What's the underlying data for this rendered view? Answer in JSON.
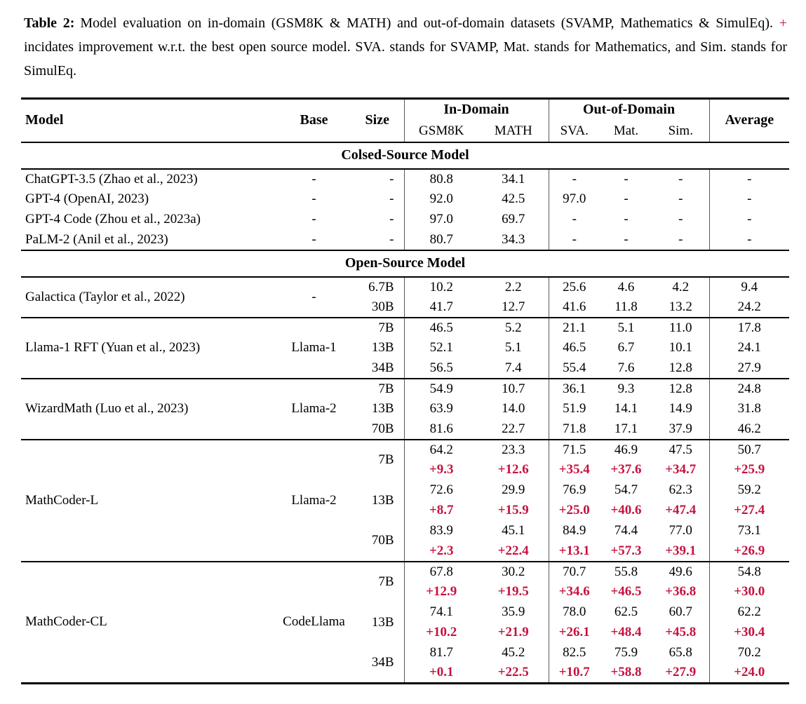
{
  "caption": {
    "label": "Table 2:",
    "text_before_plus": "Model evaluation on in-domain (GSM8K & MATH) and out-of-domain datasets (SVAMP, Mathematics & SimulEq).",
    "plus_sign": "+",
    "text_after_plus": "incidates improvement w.r.t. the best open source model. SVA. stands for SVAMP, Mat. stands for Mathematics, and Sim. stands for SimulEq."
  },
  "colors": {
    "improvement_red": "#c6123f",
    "text": "#000000",
    "rule": "#000000"
  },
  "table": {
    "header": {
      "model": "Model",
      "base": "Base",
      "size": "Size",
      "in_domain": "In-Domain",
      "out_of_domain": "Out-of-Domain",
      "gsm8k": "GSM8K",
      "math": "MATH",
      "sva": "SVA.",
      "mat": "Mat.",
      "sim": "Sim.",
      "average": "Average"
    },
    "value_columns": [
      "gsm8k",
      "math",
      "sva",
      "mat",
      "sim",
      "average"
    ],
    "sections": [
      {
        "title": "Colsed-Source Model",
        "groups": [
          {
            "model": "ChatGPT-3.5 (Zhao et al., 2023)",
            "base": "-",
            "rule_above": false,
            "rows": [
              {
                "size": "-",
                "vals": [
                  "80.8",
                  "34.1",
                  "-",
                  "-",
                  "-",
                  "-"
                ]
              }
            ]
          },
          {
            "model": "GPT-4 (OpenAI, 2023)",
            "base": "-",
            "rule_above": false,
            "rows": [
              {
                "size": "-",
                "vals": [
                  "92.0",
                  "42.5",
                  "97.0",
                  "-",
                  "-",
                  "-"
                ]
              }
            ]
          },
          {
            "model": "GPT-4 Code (Zhou et al., 2023a)",
            "base": "-",
            "rule_above": false,
            "rows": [
              {
                "size": "-",
                "vals": [
                  "97.0",
                  "69.7",
                  "-",
                  "-",
                  "-",
                  "-"
                ]
              }
            ]
          },
          {
            "model": "PaLM-2 (Anil et al., 2023)",
            "base": "-",
            "rule_above": false,
            "rows": [
              {
                "size": "-",
                "vals": [
                  "80.7",
                  "34.3",
                  "-",
                  "-",
                  "-",
                  "-"
                ]
              }
            ]
          }
        ]
      },
      {
        "title": "Open-Source Model",
        "groups": [
          {
            "model": "Galactica (Taylor et al., 2022)",
            "base": "-",
            "rule_above": false,
            "rows": [
              {
                "size": "6.7B",
                "vals": [
                  "10.2",
                  "2.2",
                  "25.6",
                  "4.6",
                  "4.2",
                  "9.4"
                ]
              },
              {
                "size": "30B",
                "vals": [
                  "41.7",
                  "12.7",
                  "41.6",
                  "11.8",
                  "13.2",
                  "24.2"
                ]
              }
            ]
          },
          {
            "model": "Llama-1 RFT (Yuan et al., 2023)",
            "base": "Llama-1",
            "rule_above": true,
            "rows": [
              {
                "size": "7B",
                "vals": [
                  "46.5",
                  "5.2",
                  "21.1",
                  "5.1",
                  "11.0",
                  "17.8"
                ]
              },
              {
                "size": "13B",
                "vals": [
                  "52.1",
                  "5.1",
                  "46.5",
                  "6.7",
                  "10.1",
                  "24.1"
                ]
              },
              {
                "size": "34B",
                "vals": [
                  "56.5",
                  "7.4",
                  "55.4",
                  "7.6",
                  "12.8",
                  "27.9"
                ]
              }
            ]
          },
          {
            "model": "WizardMath (Luo et al., 2023)",
            "base": "Llama-2",
            "rule_above": true,
            "rows": [
              {
                "size": "7B",
                "vals": [
                  "54.9",
                  "10.7",
                  "36.1",
                  "9.3",
                  "12.8",
                  "24.8"
                ]
              },
              {
                "size": "13B",
                "vals": [
                  "63.9",
                  "14.0",
                  "51.9",
                  "14.1",
                  "14.9",
                  "31.8"
                ]
              },
              {
                "size": "70B",
                "vals": [
                  "81.6",
                  "22.7",
                  "71.8",
                  "17.1",
                  "37.9",
                  "46.2"
                ]
              }
            ]
          },
          {
            "model": "MathCoder-L",
            "base": "Llama-2",
            "rule_above": true,
            "rows": [
              {
                "size": "7B",
                "vals": [
                  "64.2",
                  "23.3",
                  "71.5",
                  "46.9",
                  "47.5",
                  "50.7"
                ],
                "delta": [
                  "+9.3",
                  "+12.6",
                  "+35.4",
                  "+37.6",
                  "+34.7",
                  "+25.9"
                ]
              },
              {
                "size": "13B",
                "vals": [
                  "72.6",
                  "29.9",
                  "76.9",
                  "54.7",
                  "62.3",
                  "59.2"
                ],
                "delta": [
                  "+8.7",
                  "+15.9",
                  "+25.0",
                  "+40.6",
                  "+47.4",
                  "+27.4"
                ]
              },
              {
                "size": "70B",
                "vals": [
                  "83.9",
                  "45.1",
                  "84.9",
                  "74.4",
                  "77.0",
                  "73.1"
                ],
                "delta": [
                  "+2.3",
                  "+22.4",
                  "+13.1",
                  "+57.3",
                  "+39.1",
                  "+26.9"
                ]
              }
            ]
          },
          {
            "model": "MathCoder-CL",
            "base": "CodeLlama",
            "rule_above": true,
            "rows": [
              {
                "size": "7B",
                "vals": [
                  "67.8",
                  "30.2",
                  "70.7",
                  "55.8",
                  "49.6",
                  "54.8"
                ],
                "delta": [
                  "+12.9",
                  "+19.5",
                  "+34.6",
                  "+46.5",
                  "+36.8",
                  "+30.0"
                ]
              },
              {
                "size": "13B",
                "vals": [
                  "74.1",
                  "35.9",
                  "78.0",
                  "62.5",
                  "60.7",
                  "62.2"
                ],
                "delta": [
                  "+10.2",
                  "+21.9",
                  "+26.1",
                  "+48.4",
                  "+45.8",
                  "+30.4"
                ]
              },
              {
                "size": "34B",
                "vals": [
                  "81.7",
                  "45.2",
                  "82.5",
                  "75.9",
                  "65.8",
                  "70.2"
                ],
                "delta": [
                  "+0.1",
                  "+22.5",
                  "+10.7",
                  "+58.8",
                  "+27.9",
                  "+24.0"
                ]
              }
            ]
          }
        ]
      }
    ]
  }
}
